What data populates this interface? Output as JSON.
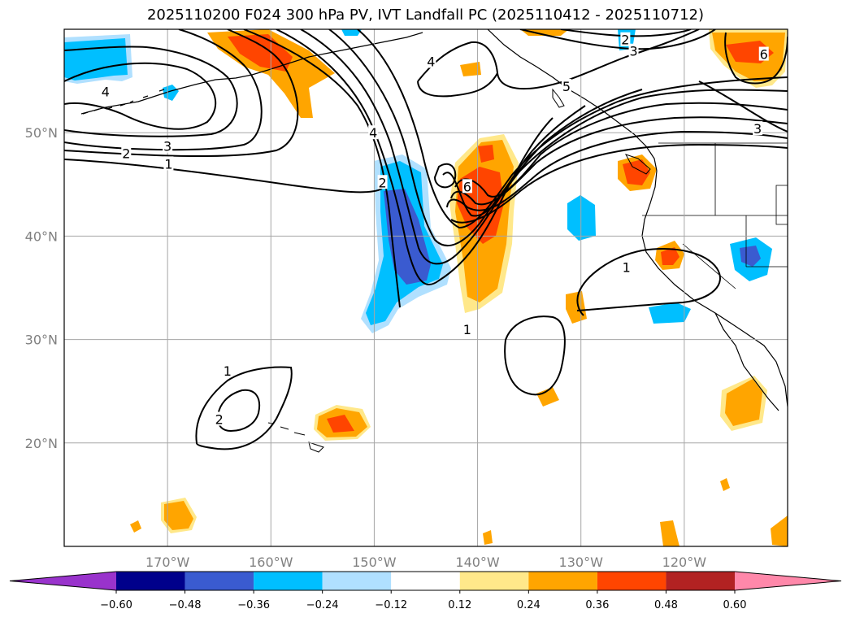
{
  "title": "2025110200 F024 300 hPa PV, IVT Landfall PC (2025110412 - 2025110712)",
  "chart_data": {
    "type": "map-contour",
    "variable_contours": "300 hPa PV (PVU)",
    "variable_shading": "IVT Landfall PC",
    "lon_range": [
      -180,
      -110
    ],
    "lat_range": [
      10,
      60
    ],
    "lat_ticks": [
      {
        "value": 20,
        "label": "20°N"
      },
      {
        "value": 30,
        "label": "30°N"
      },
      {
        "value": 40,
        "label": "40°N"
      },
      {
        "value": 50,
        "label": "50°N"
      }
    ],
    "lon_ticks": [
      {
        "value": -170,
        "label": "170°W"
      },
      {
        "value": -160,
        "label": "160°W"
      },
      {
        "value": -150,
        "label": "150°W"
      },
      {
        "value": -140,
        "label": "140°W"
      },
      {
        "value": -130,
        "label": "130°W"
      },
      {
        "value": -120,
        "label": "120°W"
      }
    ],
    "grid": true,
    "colorbar": {
      "levels": [
        -0.6,
        -0.48,
        -0.36,
        -0.24,
        -0.12,
        0.12,
        0.24,
        0.36,
        0.48,
        0.6
      ],
      "labels": [
        "−0.60",
        "−0.48",
        "−0.36",
        "−0.24",
        "−0.12",
        "0.12",
        "0.24",
        "0.36",
        "0.48",
        "0.60"
      ],
      "colors": [
        "#9933cc",
        "#00008b",
        "#3a5bd0",
        "#00bfff",
        "#b0e0ff",
        "#ffffff",
        "#ffe88a",
        "#ffa500",
        "#ff4500",
        "#b22222",
        "#ff88aa"
      ],
      "extend": "both"
    },
    "contour_labels": [
      {
        "text": "4",
        "lon": -176,
        "lat": 54.0
      },
      {
        "text": "2",
        "lon": -174,
        "lat": 48.0
      },
      {
        "text": "3",
        "lon": -170,
        "lat": 48.7
      },
      {
        "text": "1",
        "lon": -169.9,
        "lat": 47.0
      },
      {
        "text": "4",
        "lon": -144.5,
        "lat": 56.9
      },
      {
        "text": "5",
        "lon": -131.4,
        "lat": 54.5
      },
      {
        "text": "2",
        "lon": -125.7,
        "lat": 59.0
      },
      {
        "text": "3",
        "lon": -124.9,
        "lat": 57.9
      },
      {
        "text": "3",
        "lon": -112.9,
        "lat": 50.4
      },
      {
        "text": "6",
        "lon": -112.3,
        "lat": 57.6
      },
      {
        "text": "4",
        "lon": -150.1,
        "lat": 50.0
      },
      {
        "text": "2",
        "lon": -149.2,
        "lat": 45.2
      },
      {
        "text": "6",
        "lon": -141.0,
        "lat": 44.8
      },
      {
        "text": "1",
        "lon": -125.6,
        "lat": 37.0
      },
      {
        "text": "1",
        "lon": -141.0,
        "lat": 31.0
      },
      {
        "text": "1",
        "lon": -164.2,
        "lat": 27.0
      },
      {
        "text": "2",
        "lon": -165.0,
        "lat": 22.3
      }
    ]
  }
}
